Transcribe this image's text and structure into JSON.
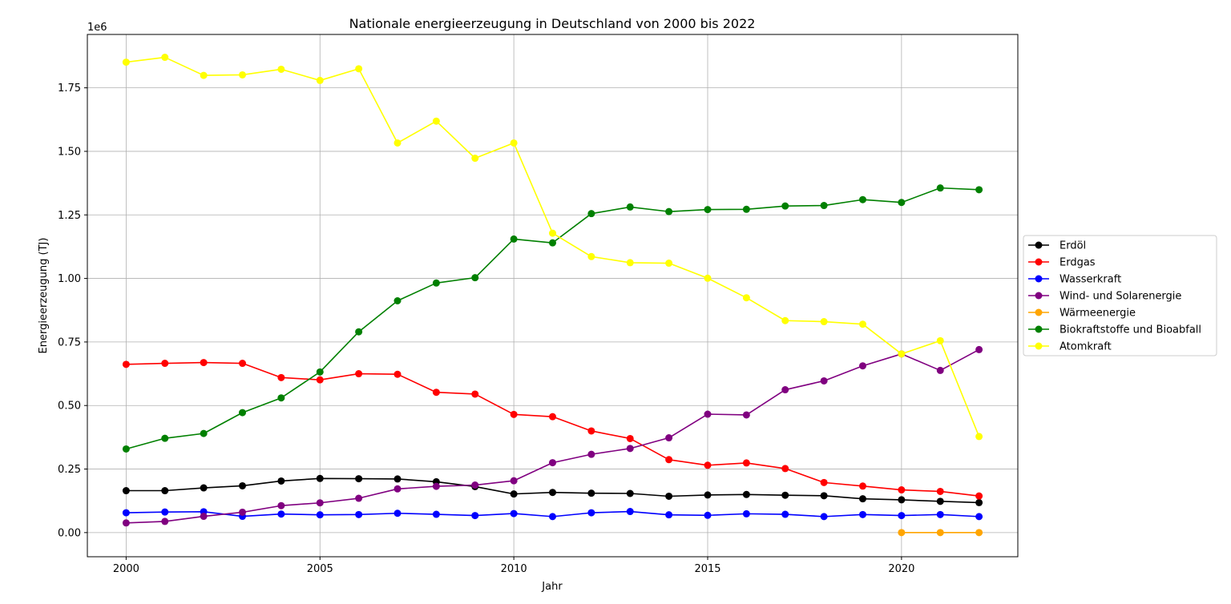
{
  "chart_data": {
    "type": "line",
    "title": "Nationale energieerzeugung in Deutschland von 2000 bis 2022",
    "xlabel": "Jahr",
    "ylabel": "Energieerzeugung (TJ)",
    "y_offset_label": "1e6",
    "xlim": [
      1999.0,
      2023.0
    ],
    "ylim": [
      -95000,
      1960000
    ],
    "x_ticks": [
      2000,
      2005,
      2010,
      2015,
      2020
    ],
    "y_ticks": [
      0,
      250000,
      500000,
      750000,
      1000000,
      1250000,
      1500000,
      1750000
    ],
    "y_tick_labels": [
      "0.00",
      "0.25",
      "0.50",
      "0.75",
      "1.00",
      "1.25",
      "1.50",
      "1.75"
    ],
    "grid": true,
    "legend_position": "center-right outside",
    "series": [
      {
        "name": "Erdöl",
        "color": "#000000",
        "x": [
          2000,
          2001,
          2002,
          2003,
          2004,
          2005,
          2006,
          2007,
          2008,
          2009,
          2010,
          2011,
          2012,
          2013,
          2014,
          2015,
          2016,
          2017,
          2018,
          2019,
          2020,
          2021,
          2022
        ],
        "values": [
          165000,
          165000,
          176000,
          184000,
          203000,
          213000,
          212000,
          211000,
          200000,
          181000,
          152000,
          158000,
          155000,
          154000,
          143000,
          148000,
          150000,
          147000,
          145000,
          133000,
          129000,
          123000,
          118000
        ]
      },
      {
        "name": "Erdgas",
        "color": "#ff0000",
        "x": [
          2000,
          2001,
          2002,
          2003,
          2004,
          2005,
          2006,
          2007,
          2008,
          2009,
          2010,
          2011,
          2012,
          2013,
          2014,
          2015,
          2016,
          2017,
          2018,
          2019,
          2020,
          2021,
          2022
        ],
        "values": [
          662000,
          666000,
          669000,
          666000,
          610000,
          601000,
          625000,
          623000,
          552000,
          545000,
          465000,
          456000,
          400000,
          370000,
          287000,
          265000,
          274000,
          252000,
          197000,
          183000,
          168000,
          162000,
          144000
        ]
      },
      {
        "name": "Wasserkraft",
        "color": "#0000ff",
        "x": [
          2000,
          2001,
          2002,
          2003,
          2004,
          2005,
          2006,
          2007,
          2008,
          2009,
          2010,
          2011,
          2012,
          2013,
          2014,
          2015,
          2016,
          2017,
          2018,
          2019,
          2020,
          2021,
          2022
        ],
        "values": [
          78000,
          81000,
          82000,
          64000,
          73000,
          70000,
          71000,
          76000,
          72000,
          67000,
          75000,
          63000,
          78000,
          83000,
          70000,
          68000,
          74000,
          72000,
          63000,
          71000,
          67000,
          71000,
          63000
        ]
      },
      {
        "name": "Wind- und Solarenergie",
        "color": "#800080",
        "x": [
          2000,
          2001,
          2002,
          2003,
          2004,
          2005,
          2006,
          2007,
          2008,
          2009,
          2010,
          2011,
          2012,
          2013,
          2014,
          2015,
          2016,
          2017,
          2018,
          2019,
          2020,
          2021,
          2022
        ],
        "values": [
          38000,
          44000,
          64000,
          80000,
          106000,
          117000,
          135000,
          172000,
          182000,
          187000,
          204000,
          275000,
          308000,
          331000,
          373000,
          466000,
          463000,
          562000,
          597000,
          656000,
          703000,
          638000,
          720000
        ]
      },
      {
        "name": "Wärmeenergie",
        "color": "#ffa500",
        "x": [
          2020,
          2021,
          2022
        ],
        "values": [
          0,
          0,
          0
        ]
      },
      {
        "name": "Biokraftstoffe und Bioabfall",
        "color": "#008000",
        "x": [
          2000,
          2001,
          2002,
          2003,
          2004,
          2005,
          2006,
          2007,
          2008,
          2009,
          2010,
          2011,
          2012,
          2013,
          2014,
          2015,
          2016,
          2017,
          2018,
          2019,
          2020,
          2021,
          2022
        ],
        "values": [
          329000,
          371000,
          390000,
          472000,
          530000,
          632000,
          790000,
          912000,
          982000,
          1003000,
          1155000,
          1140000,
          1255000,
          1281000,
          1263000,
          1271000,
          1272000,
          1285000,
          1287000,
          1310000,
          1299000,
          1356000,
          1349000
        ]
      },
      {
        "name": "Atomkraft",
        "color": "#ffff00",
        "x": [
          2000,
          2001,
          2002,
          2003,
          2004,
          2005,
          2006,
          2007,
          2008,
          2009,
          2010,
          2011,
          2012,
          2013,
          2014,
          2015,
          2016,
          2017,
          2018,
          2019,
          2020,
          2021,
          2022
        ],
        "values": [
          1851000,
          1870000,
          1799000,
          1801000,
          1823000,
          1779000,
          1825000,
          1533000,
          1619000,
          1473000,
          1533000,
          1178000,
          1086000,
          1062000,
          1060000,
          1001000,
          924000,
          834000,
          830000,
          820000,
          703000,
          755000,
          378000
        ]
      }
    ]
  }
}
